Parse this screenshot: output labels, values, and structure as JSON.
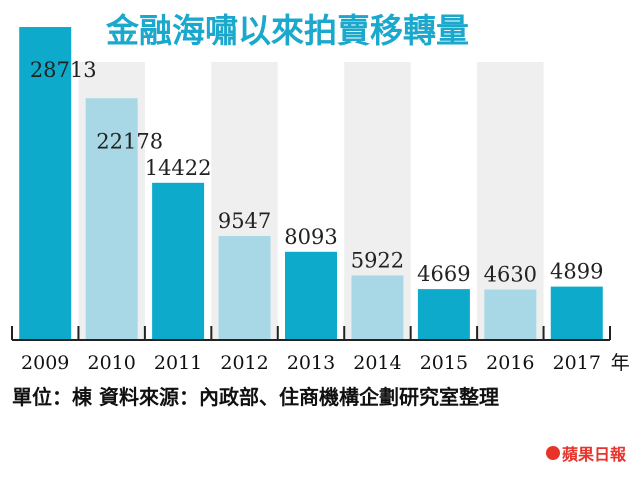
{
  "chart_data": {
    "type": "bar",
    "title": "金融海嘯以來拍賣移轉量",
    "categories": [
      "2009",
      "2010",
      "2011",
      "2012",
      "2013",
      "2014",
      "2015",
      "2016",
      "2017"
    ],
    "values": [
      28713,
      22178,
      14422,
      9547,
      8093,
      5922,
      4669,
      4630,
      4899
    ],
    "x_unit_suffix": "年",
    "ylim": [
      0,
      30000
    ],
    "grid": false,
    "colors": {
      "dark": "#0eaacb",
      "light": "#a8d8e6",
      "stripe": "#efefef"
    }
  },
  "source": "單位：棟 資料來源：內政部、住商機構企劃研究室整理",
  "logo": {
    "icon": "apple-icon",
    "text": "蘋果日報"
  }
}
